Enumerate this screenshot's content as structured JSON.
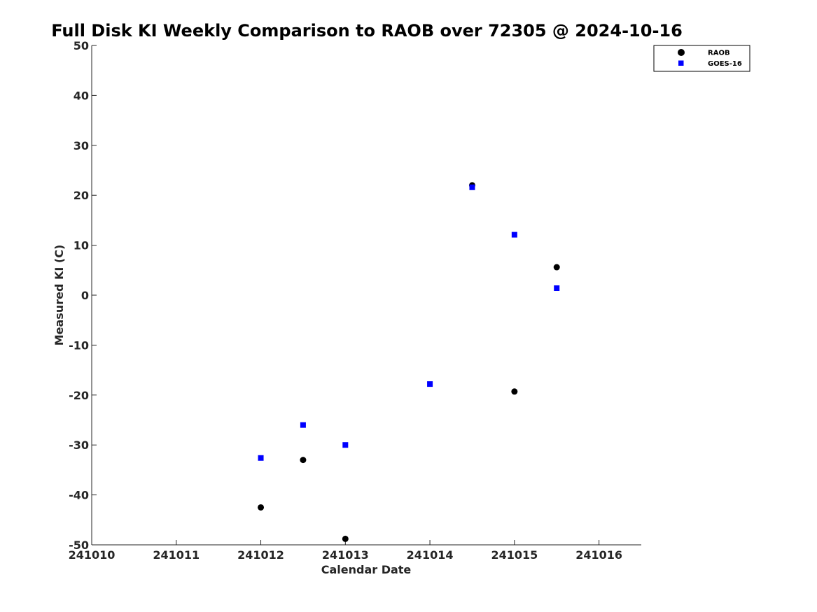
{
  "chart_data": {
    "type": "scatter",
    "title": "Full Disk KI Weekly Comparison to RAOB over 72305 @ 2024-10-16",
    "xlabel": "Calendar Date",
    "ylabel": "Measured KI (C)",
    "xlim": [
      241010,
      241016.5
    ],
    "ylim": [
      -50,
      50
    ],
    "xticks": [
      241010,
      241011,
      241012,
      241013,
      241014,
      241015,
      241016
    ],
    "xtick_labels": [
      "241010",
      "241011",
      "241012",
      "241013",
      "241014",
      "241015",
      "241016"
    ],
    "yticks": [
      -50,
      -40,
      -30,
      -20,
      -10,
      0,
      10,
      20,
      30,
      40,
      50
    ],
    "ytick_labels": [
      "-50",
      "-40",
      "-30",
      "-20",
      "-10",
      "0",
      "10",
      "20",
      "30",
      "40",
      "50"
    ],
    "grid": false,
    "legend_position": "top-right",
    "series": [
      {
        "name": "RAOB",
        "marker": "circle",
        "color": "#000000",
        "points": [
          {
            "x": 241012.0,
            "y": -42.5
          },
          {
            "x": 241012.5,
            "y": -33.0
          },
          {
            "x": 241013.0,
            "y": -48.8
          },
          {
            "x": 241014.5,
            "y": 22.0
          },
          {
            "x": 241015.0,
            "y": -19.3
          },
          {
            "x": 241015.5,
            "y": 5.6
          }
        ]
      },
      {
        "name": "GOES-16",
        "marker": "square",
        "color": "#0000ff",
        "points": [
          {
            "x": 241012.0,
            "y": -32.6
          },
          {
            "x": 241012.5,
            "y": -26.0
          },
          {
            "x": 241013.0,
            "y": -30.0
          },
          {
            "x": 241014.0,
            "y": -17.8
          },
          {
            "x": 241014.5,
            "y": 21.6
          },
          {
            "x": 241015.0,
            "y": 12.1
          },
          {
            "x": 241015.5,
            "y": 1.4
          }
        ]
      }
    ]
  }
}
